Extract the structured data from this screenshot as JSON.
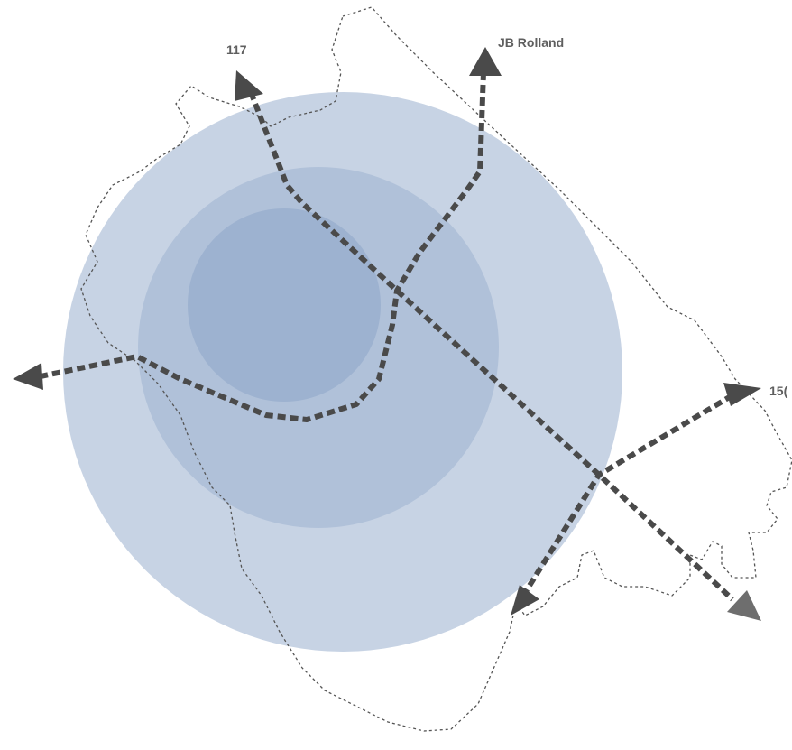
{
  "map": {
    "colors": {
      "ring_outer": "#c7d3e4",
      "ring_middle": "#b0c1d9",
      "ring_inner": "#9db2d0",
      "route": "#4a4a4a",
      "route_faded": "#6e6e6e",
      "boundary": "#555555",
      "label": "#5f5f5f"
    },
    "rings": [
      {
        "name": "outer-ring"
      },
      {
        "name": "middle-ring"
      },
      {
        "name": "inner-ring"
      }
    ],
    "route_labels": {
      "north_west": "117",
      "north": "JB Rolland",
      "east": "15("
    }
  }
}
